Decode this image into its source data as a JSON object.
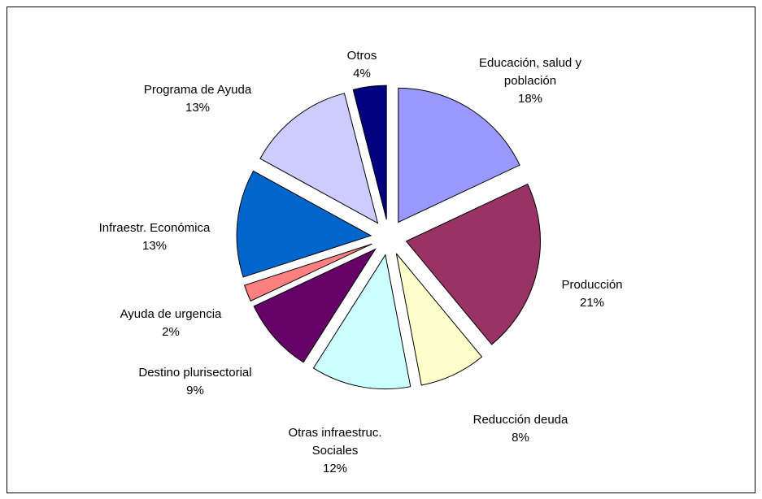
{
  "chart_data": {
    "type": "pie",
    "categories": [
      "Educación, salud y población",
      "Producción",
      "Reducción deuda",
      "Otras infraestruc. Sociales",
      "Destino plurisectorial",
      "Ayuda de urgencia",
      "Infraestr. Económica",
      "Programa de Ayuda",
      "Otros"
    ],
    "values": [
      18,
      21,
      8,
      12,
      9,
      2,
      13,
      13,
      4
    ],
    "value_labels": [
      "18%",
      "21%",
      "8%",
      "12%",
      "9%",
      "2%",
      "13%",
      "13%",
      "4%"
    ],
    "colors": [
      "#9999ff",
      "#993366",
      "#ffffcc",
      "#ccffff",
      "#660066",
      "#ff8080",
      "#0066cc",
      "#ccccff",
      "#000080"
    ]
  }
}
